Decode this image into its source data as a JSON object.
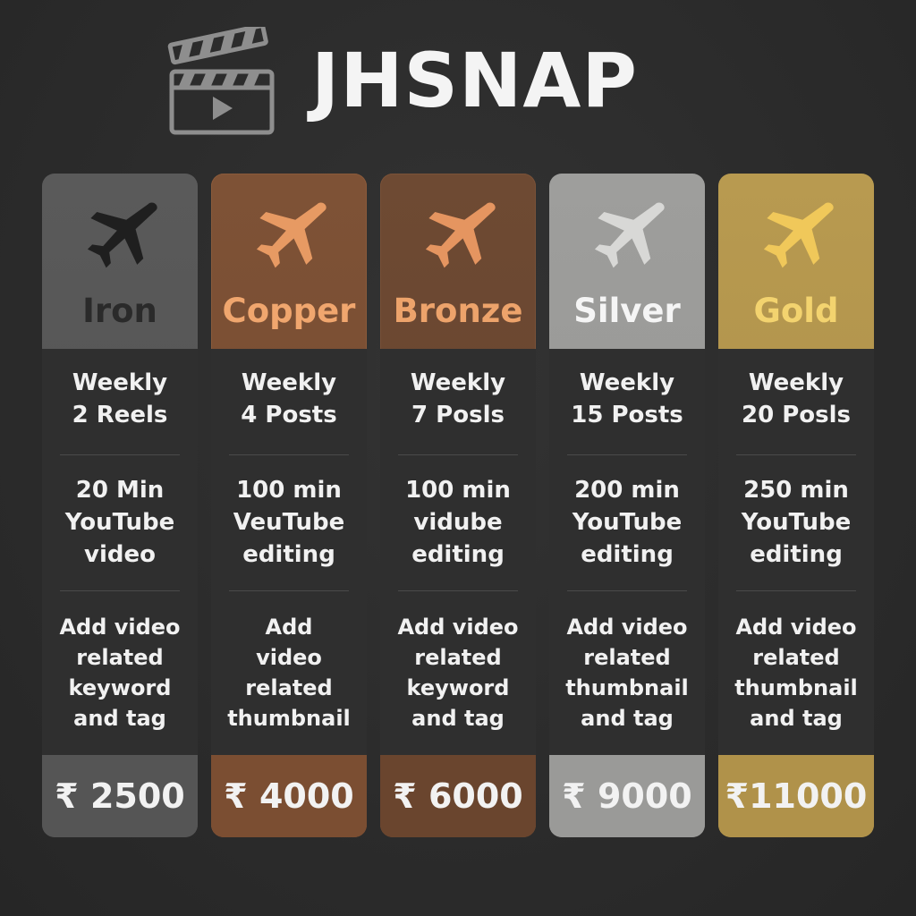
{
  "brand": {
    "title": "JHSNAP",
    "logo_icon": "clapperboard-play-icon"
  },
  "colors": {
    "background": "#2b2b2b",
    "panel": "#2f2f2f",
    "iron": "#555555",
    "copper": "#7a4f34",
    "bronze": "#6a4630",
    "silver": "#9a9a98",
    "gold": "#b0924a"
  },
  "plans": [
    {
      "name": "Iron",
      "icon": "airplane-icon",
      "feature1": [
        "Weekly",
        "2 Reels"
      ],
      "feature2": [
        "20 Min",
        "YouTube",
        "video"
      ],
      "feature3": [
        "Add video",
        "related",
        "keyword",
        "and tag"
      ],
      "price": "₹ 2500"
    },
    {
      "name": "Copper",
      "icon": "airplane-icon",
      "feature1": [
        "Weekly",
        "4 Posts"
      ],
      "feature2": [
        "100 min",
        "VeuTube",
        "editing"
      ],
      "feature3": [
        "Add",
        "video",
        "related",
        "thumbnail"
      ],
      "price": "₹ 4000"
    },
    {
      "name": "Bronze",
      "icon": "airplane-icon",
      "feature1": [
        "Weekly",
        "7 Posls"
      ],
      "feature2": [
        "100 min",
        "vidube",
        "editing"
      ],
      "feature3": [
        "Add video",
        "related",
        "keyword",
        "and tag"
      ],
      "price": "₹ 6000"
    },
    {
      "name": "Silver",
      "icon": "airplane-icon",
      "feature1": [
        "Weekly",
        "15 Posts"
      ],
      "feature2": [
        "200 min",
        "YouTube",
        "editing"
      ],
      "feature3": [
        "Add video",
        "related",
        "thumbnail",
        "and tag"
      ],
      "price": "₹ 9000"
    },
    {
      "name": "Gold",
      "icon": "airplane-icon",
      "feature1": [
        "Weekly",
        "20 Posls"
      ],
      "feature2": [
        "250 min",
        "YouTube",
        "editing"
      ],
      "feature3": [
        "Add video",
        "related",
        "thumbnail",
        "and tag"
      ],
      "price": "₹11000"
    }
  ]
}
